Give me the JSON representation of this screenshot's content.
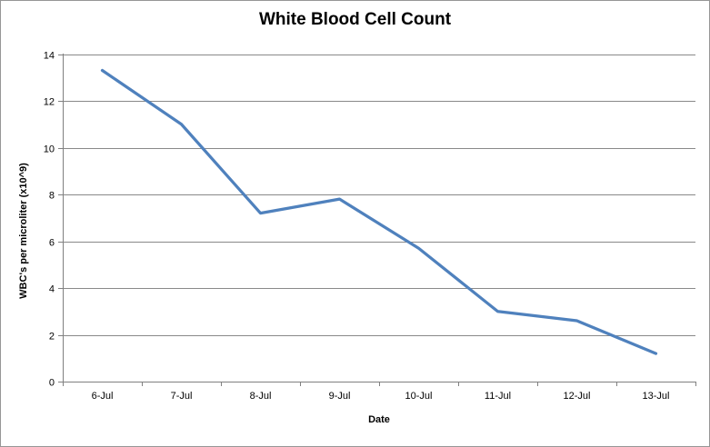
{
  "colors": {
    "line": "#4F81BD",
    "gridline": "#898989",
    "axis": "#808080",
    "text": "#000000",
    "border": "#969696",
    "background": "#FFFFFF"
  },
  "chart_data": {
    "type": "line",
    "title": "White Blood Cell Count",
    "xlabel": "Date",
    "ylabel": "WBC's per microliter (x10^9)",
    "categories": [
      "6-Jul",
      "7-Jul",
      "8-Jul",
      "9-Jul",
      "10-Jul",
      "11-Jul",
      "12-Jul",
      "13-Jul"
    ],
    "values": [
      13.3,
      11,
      7.2,
      7.8,
      5.7,
      3,
      2.6,
      1.2
    ],
    "ylim": [
      0,
      14
    ],
    "yticks": [
      0,
      2,
      4,
      6,
      8,
      10,
      12,
      14
    ],
    "grid": true,
    "legend": "none"
  }
}
